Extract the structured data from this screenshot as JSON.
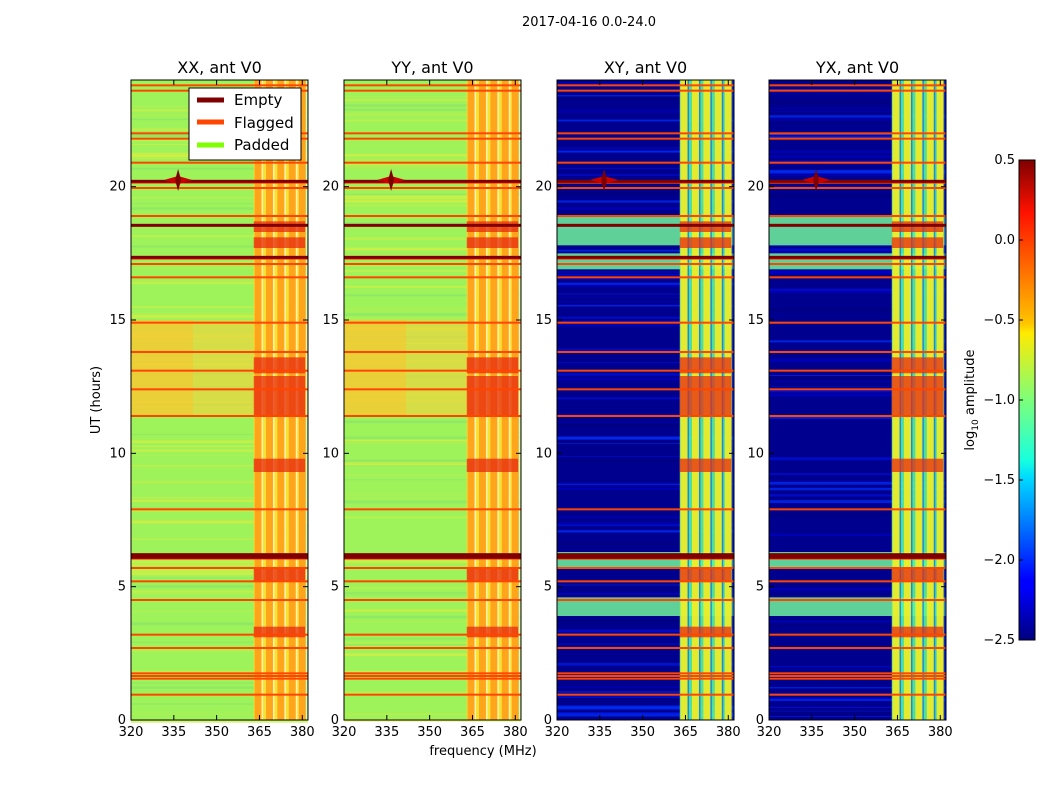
{
  "chart_data": {
    "type": "heatmap",
    "suptitle": "2017-04-16 0.0-24.0",
    "xlabel": "frequency (MHz)",
    "ylabel": "UT (hours)",
    "xlim": [
      320,
      382
    ],
    "ylim": [
      0,
      24
    ],
    "xticks": [
      "320",
      "335",
      "350",
      "365",
      "380"
    ],
    "xtick_values": [
      320,
      335,
      350,
      365,
      380
    ],
    "yticks": [
      "0",
      "5",
      "10",
      "15",
      "20"
    ],
    "ytick_values": [
      0,
      5,
      10,
      15,
      20
    ],
    "panels": [
      {
        "title": "XX, ant V0",
        "mode": "parallel"
      },
      {
        "title": "YY, ant V0",
        "mode": "parallel"
      },
      {
        "title": "XY, ant V0",
        "mode": "cross"
      },
      {
        "title": "YX, ant V0",
        "mode": "cross"
      }
    ],
    "legend": {
      "position": "top-right of first panel",
      "entries": [
        {
          "label": "Empty",
          "color": "#800000"
        },
        {
          "label": "Flagged",
          "color": "#ff4500"
        },
        {
          "label": "Padded",
          "color": "#7fff00"
        }
      ]
    },
    "colorbar": {
      "label": "log10 amplitude",
      "range": [
        -2.5,
        0.5
      ],
      "ticks": [
        "0.5",
        "0.0",
        "−0.5",
        "−1.0",
        "−1.5",
        "−2.0",
        "−2.5"
      ],
      "tick_values": [
        0.5,
        0.0,
        -0.5,
        -1.0,
        -1.5,
        -2.0,
        -2.5
      ],
      "colormap": "jet"
    },
    "flagged_hours": [
      0.95,
      1.55,
      1.65,
      1.75,
      2.7,
      3.2,
      4.5,
      5.2,
      5.7,
      6.05,
      6.15,
      7.9,
      11.4,
      12.4,
      13.1,
      13.8,
      14.9,
      16.6,
      17.1,
      17.3,
      18.9,
      19.95,
      20.15,
      20.9,
      21.8,
      22.0,
      23.6,
      23.8
    ],
    "empty_hours": [
      6.1,
      6.2,
      17.35,
      18.55,
      20.2
    ],
    "rfi_channels_mhz": [
      364.5,
      368.5,
      372.5,
      376.5,
      380.0
    ],
    "rfi_hour_range": [
      0,
      24
    ]
  }
}
